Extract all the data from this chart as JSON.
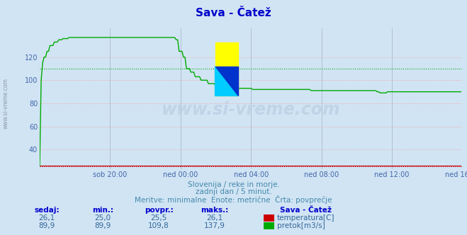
{
  "title": "Sava - Čatež",
  "title_color": "#0000cc",
  "bg_color": "#d0e4f4",
  "plot_bg_color": "#d0e4f4",
  "grid_color_h": "#ff9999",
  "grid_color_v": "#aabbcc",
  "xlabel_color": "#4466aa",
  "watermark_text": "www.si-vreme.com",
  "subtitle_lines": [
    "Slovenija / reke in morje.",
    "zadnji dan / 5 minut.",
    "Meritve: minimalne  Enote: metrične  Črta: povprečje"
  ],
  "subtitle_color": "#4488aa",
  "footer_label_color": "#0000cc",
  "footer_value_color": "#336699",
  "yticks": [
    40,
    60,
    80,
    100,
    120
  ],
  "ylim": [
    23,
    145
  ],
  "xlim": [
    0,
    288
  ],
  "xtick_labels": [
    "sob 20:00",
    "ned 00:00",
    "ned 04:00",
    "ned 08:00",
    "ned 12:00",
    "ned 16:00"
  ],
  "xtick_positions": [
    48,
    96,
    144,
    192,
    240,
    288
  ],
  "temp_color": "#cc0000",
  "flow_color": "#00aa00",
  "avg_flow_value": 109.8,
  "avg_temp_value": 25.5,
  "footer_cols": [
    "sedaj:",
    "min.:",
    "povpr.:",
    "maks.:"
  ],
  "footer_temp_row": [
    "26,1",
    "25,0",
    "25,5",
    "26,1"
  ],
  "footer_flow_row": [
    "89,9",
    "89,9",
    "109,8",
    "137,9"
  ],
  "footer_station": "Sava - Čatež",
  "temp_label": "temperatura[C]",
  "flow_label": "pretok[m3/s]",
  "logo_yellow": "#ffff00",
  "logo_cyan": "#00ccff",
  "logo_blue": "#0033cc"
}
